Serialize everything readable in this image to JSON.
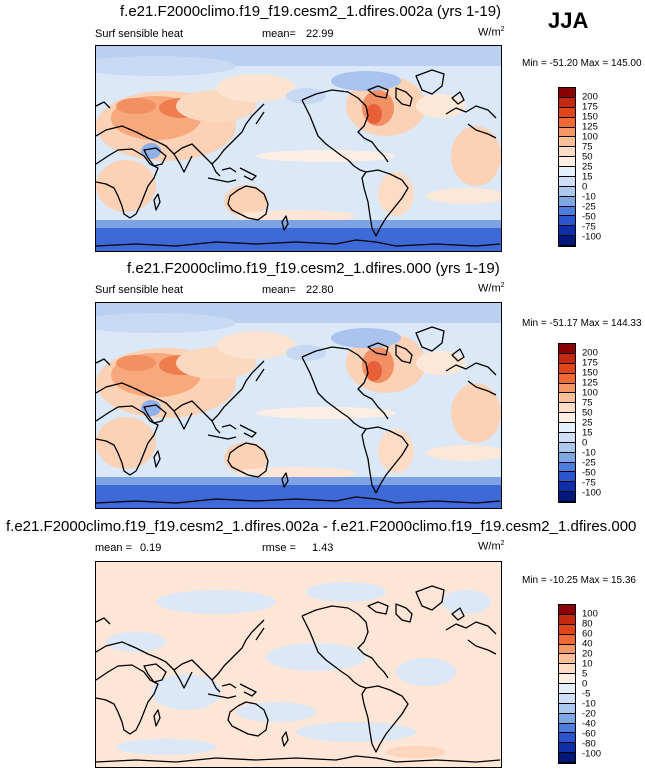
{
  "season_label": "JJA",
  "panels": [
    {
      "title": "f.e21.F2000climo.f19_f19.cesm2_1.dfires.002a (yrs 1-19)",
      "left_label": "Surf sensible heat",
      "stat1_label": "mean=",
      "stat1_value": "22.99",
      "units": "W/m",
      "units_exp": "2",
      "min_label": "Min =",
      "min_value": "-51.20",
      "max_label": "Max =",
      "max_value": "145.00",
      "colorbar_ticks": [
        "200",
        "175",
        "150",
        "125",
        "100",
        "75",
        "50",
        "25",
        "15",
        "0",
        "-10",
        "-25",
        "-50",
        "-75",
        "-100"
      ],
      "colorbar_colors": [
        "#8b0000",
        "#c42b0e",
        "#e2451a",
        "#ef6a36",
        "#f69866",
        "#fbbf97",
        "#fddcc5",
        "#fff0e3",
        "#e6f0fb",
        "#cfe0f6",
        "#aac8f0",
        "#7ea7e6",
        "#4f7ddb",
        "#2a55cc",
        "#0e2fa8",
        "#011a7a"
      ]
    },
    {
      "title": "f.e21.F2000climo.f19_f19.cesm2_1.dfires.000 (yrs 1-19)",
      "left_label": "Surf sensible heat",
      "stat1_label": "mean=",
      "stat1_value": "22.80",
      "units": "W/m",
      "units_exp": "2",
      "min_label": "Min =",
      "min_value": "-51.17",
      "max_label": "Max =",
      "max_value": "144.33",
      "colorbar_ticks": [
        "200",
        "175",
        "150",
        "125",
        "100",
        "75",
        "50",
        "25",
        "15",
        "0",
        "-10",
        "-25",
        "-50",
        "-75",
        "-100"
      ],
      "colorbar_colors": [
        "#8b0000",
        "#c42b0e",
        "#e2451a",
        "#ef6a36",
        "#f69866",
        "#fbbf97",
        "#fddcc5",
        "#fff0e3",
        "#e6f0fb",
        "#cfe0f6",
        "#aac8f0",
        "#7ea7e6",
        "#4f7ddb",
        "#2a55cc",
        "#0e2fa8",
        "#011a7a"
      ]
    },
    {
      "title": "f.e21.F2000climo.f19_f19.cesm2_1.dfires.002a - f.e21.F2000climo.f19_f19.cesm2_1.dfires.000",
      "stat1_label": "mean =",
      "stat1_value": "0.19",
      "stat2_label": "rmse =",
      "stat2_value": "1.43",
      "units": "W/m",
      "units_exp": "2",
      "min_label": "Min =",
      "min_value": "-10.25",
      "max_label": "Max =",
      "max_value": "15.36",
      "colorbar_ticks": [
        "100",
        "80",
        "60",
        "40",
        "20",
        "10",
        "5",
        "0",
        "-5",
        "-10",
        "-20",
        "-40",
        "-60",
        "-80",
        "-100"
      ],
      "colorbar_colors": [
        "#8b0000",
        "#c42b0e",
        "#e2451a",
        "#ef6a36",
        "#f69866",
        "#fbbf97",
        "#fddcc5",
        "#fff0e3",
        "#e6f0fb",
        "#cfe0f6",
        "#aac8f0",
        "#7ea7e6",
        "#4f7ddb",
        "#2a55cc",
        "#0e2fa8",
        "#011a7a"
      ]
    }
  ]
}
